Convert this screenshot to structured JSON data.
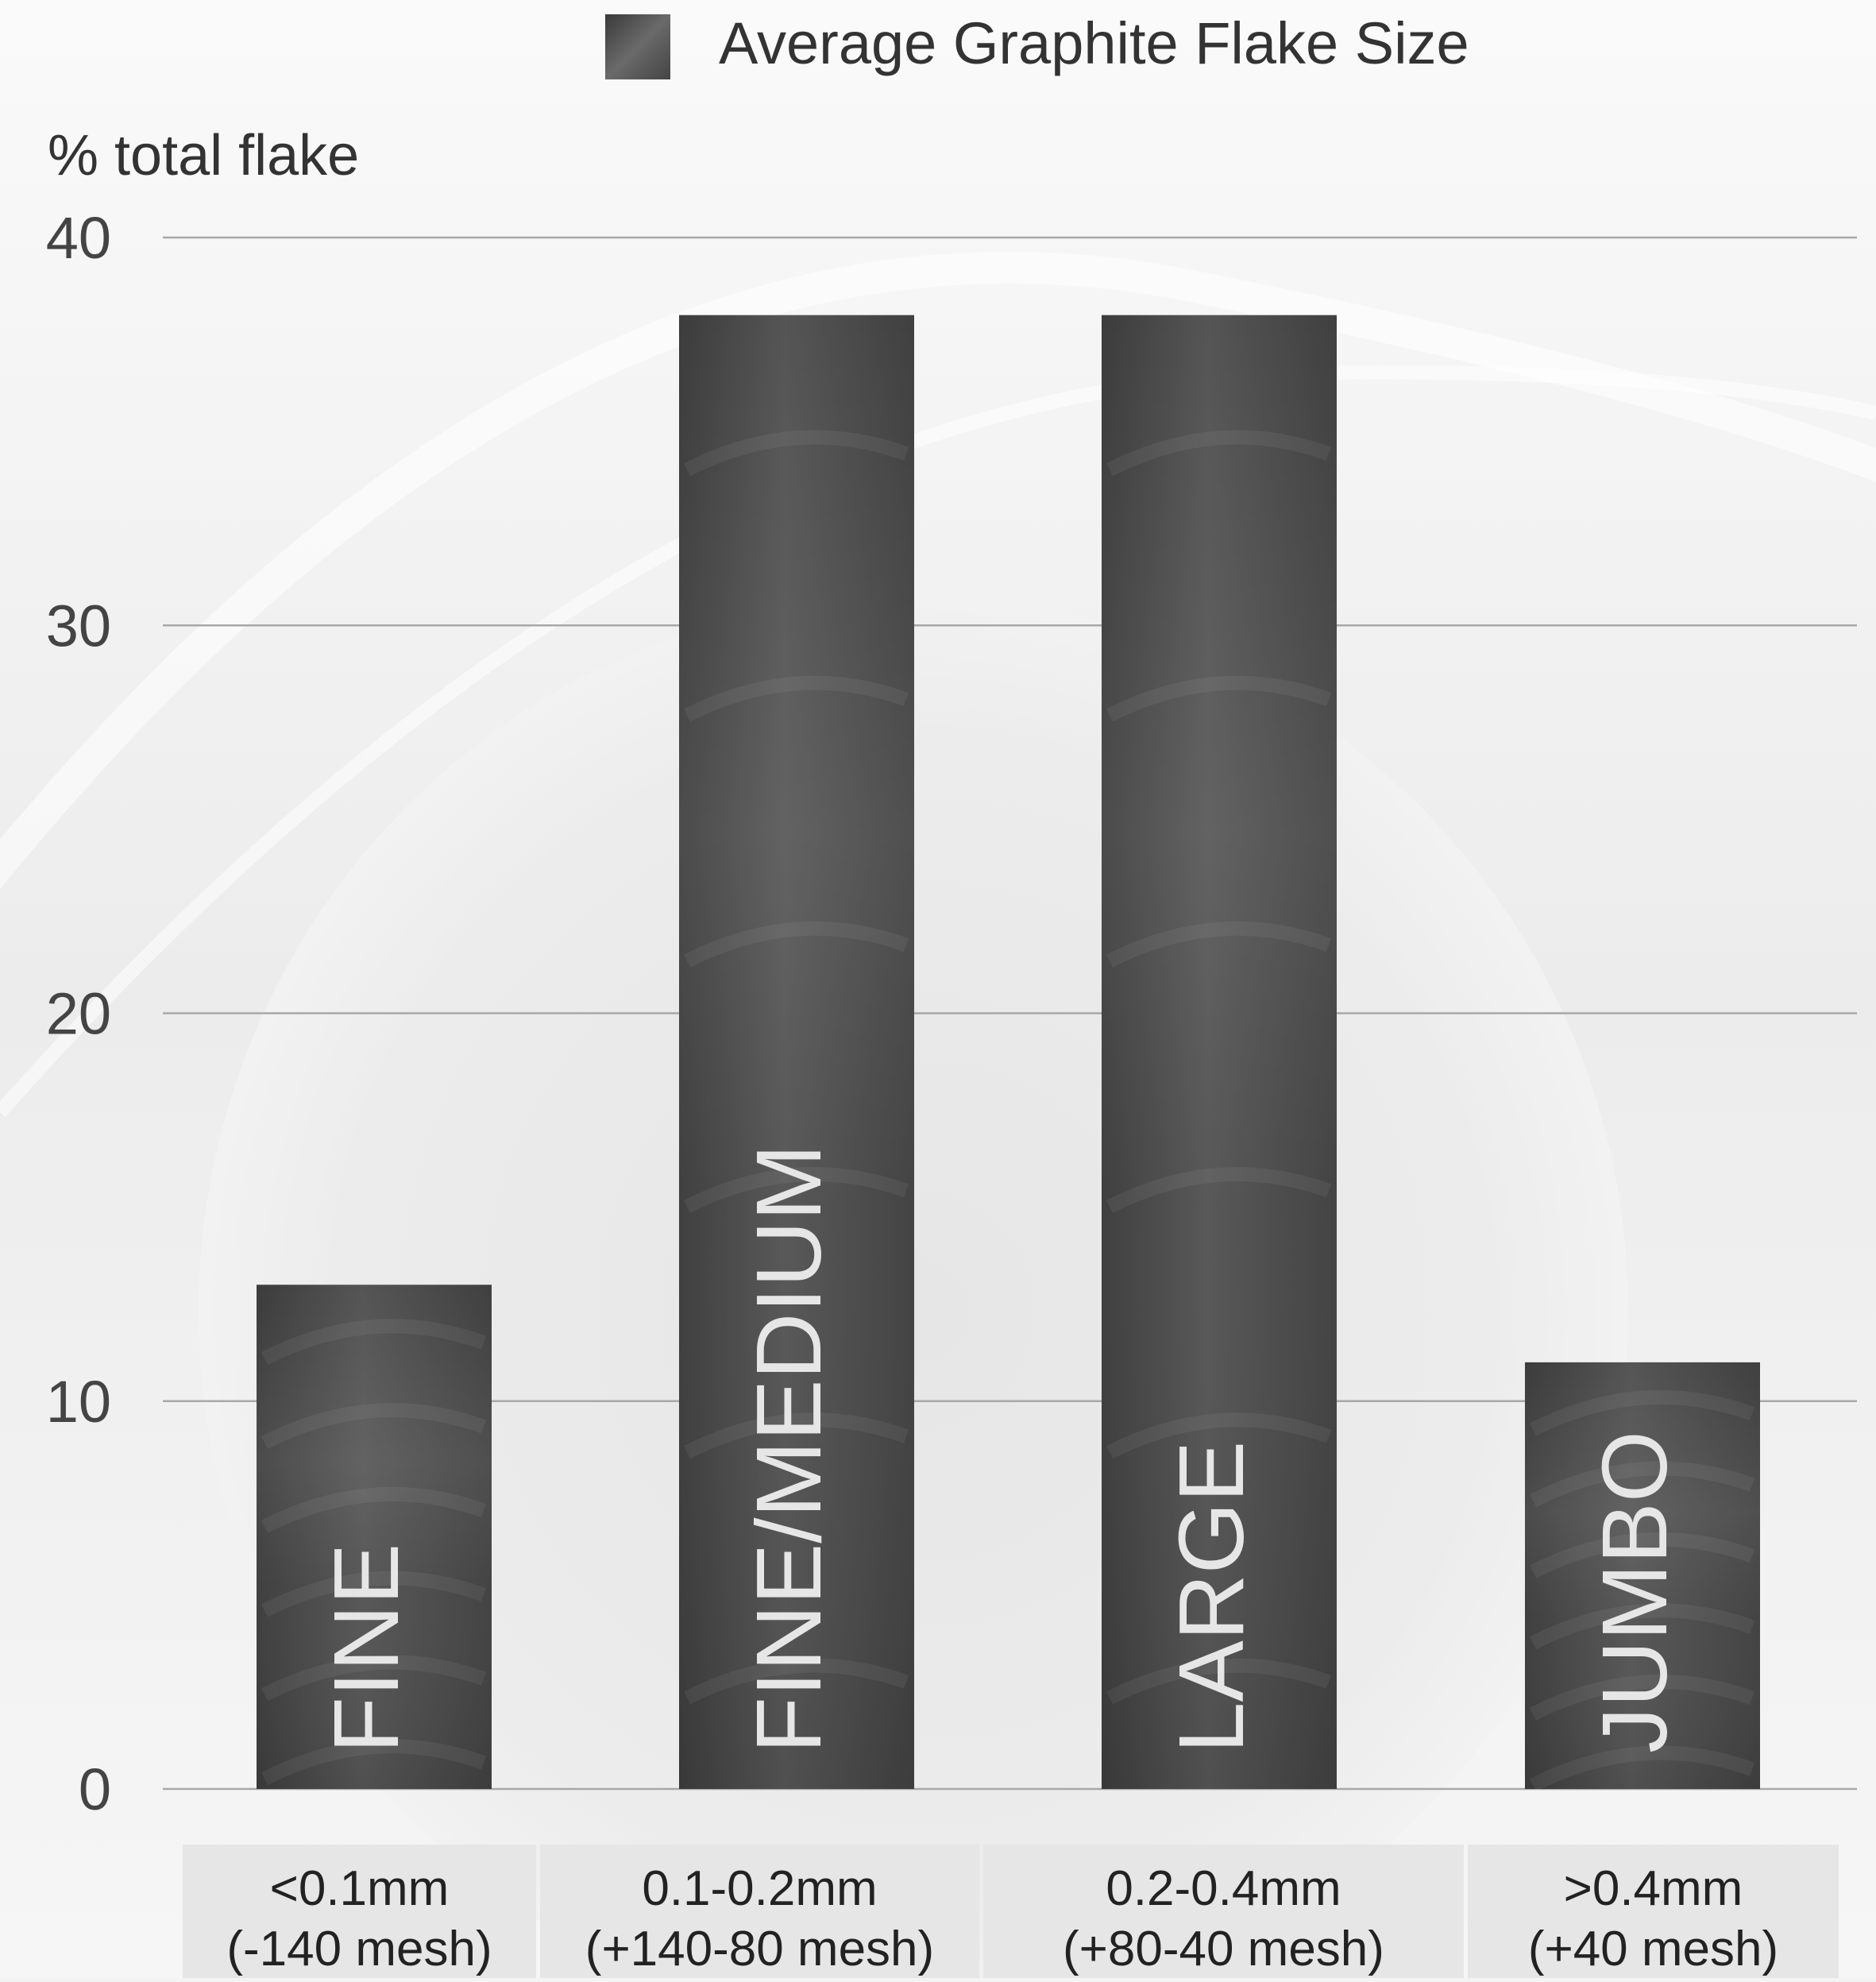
{
  "chart_data": {
    "type": "bar",
    "legend": {
      "label": "Average Graphite Flake Size",
      "position": "top-center"
    },
    "ylabel": "% total flake",
    "ylim": [
      0,
      40
    ],
    "yticks": [
      0,
      10,
      20,
      30,
      40
    ],
    "grid": true,
    "series": [
      {
        "name": "Average Graphite Flake Size",
        "values": [
          13,
          38,
          38,
          11
        ],
        "bar_labels": [
          "FINE",
          "FINE/MEDIUM",
          "LARGE",
          "JUMBO"
        ]
      }
    ],
    "categories": [
      {
        "line1": "<0.1mm",
        "line2": "(-140 mesh)"
      },
      {
        "line1": "0.1-0.2mm",
        "line2": "(+140-80 mesh)"
      },
      {
        "line1": "0.2-0.4mm",
        "line2": "(+80-40 mesh)"
      },
      {
        "line1": ">0.4mm",
        "line2": "(+40 mesh)"
      }
    ],
    "colors": {
      "bar": "#4a4a4a",
      "bar_label": "#e6e6e6",
      "grid": "#a8a8a8",
      "category_box": "#e6e6e6",
      "text": "#333333"
    }
  }
}
